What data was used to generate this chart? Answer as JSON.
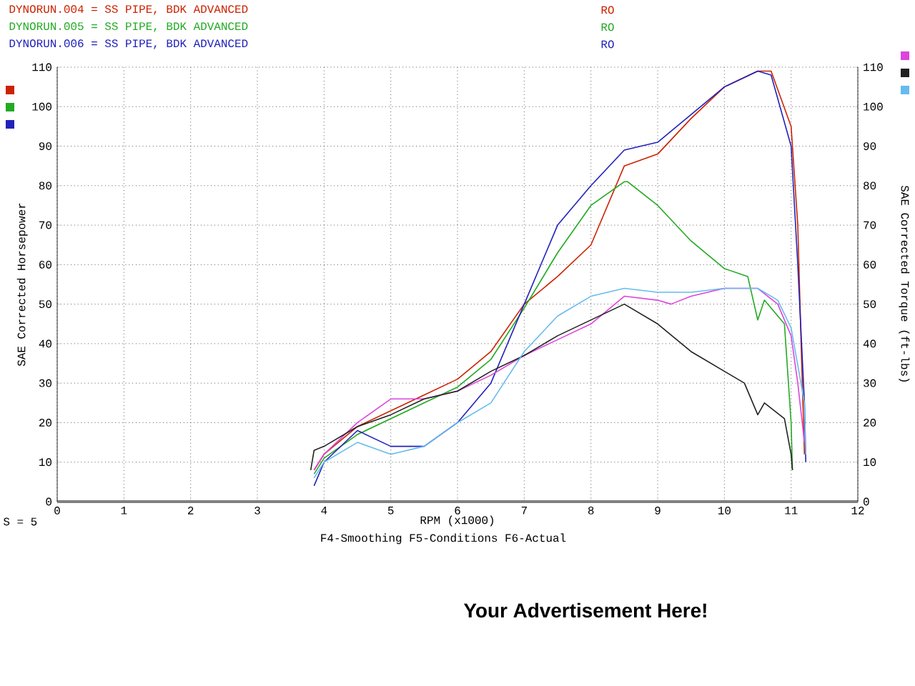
{
  "chart_data": {
    "type": "line",
    "xlabel": "RPM (x1000)",
    "ylabel": "SAE Corrected Horsepower",
    "y2label": "SAE Corrected Torque (ft-lbs)",
    "xlim": [
      0,
      12
    ],
    "xticks": [
      0,
      1,
      2,
      3,
      4,
      5,
      6,
      7,
      8,
      9,
      10,
      11,
      12
    ],
    "ylim": [
      0,
      110
    ],
    "yticks": [
      0,
      10,
      20,
      30,
      40,
      50,
      60,
      70,
      80,
      90,
      100,
      110
    ],
    "y2lim": [
      0,
      110
    ],
    "y2ticks": [
      0,
      10,
      20,
      30,
      40,
      50,
      60,
      70,
      80,
      90,
      100,
      110
    ],
    "grid": true,
    "legend": "top",
    "line_style": "solid",
    "marker": "none",
    "annotations": [
      "RO",
      "RO",
      "RO",
      "S = 5",
      "F4-Smoothing  F5-Conditions  F6-Actual",
      "Your Advertisement Here!"
    ],
    "series": [
      {
        "name": "DYNORUN.004 = SS PIPE, BDK ADVANCED",
        "color": "#cc2200",
        "x": [
          3.85,
          4,
          4.5,
          5,
          5.5,
          6,
          6.5,
          7,
          7.5,
          8,
          8.5,
          9,
          9.5,
          10,
          10.5,
          10.7,
          11,
          11.1,
          11.15,
          11.2
        ],
        "values": [
          8,
          12,
          19,
          23,
          27,
          31,
          38,
          50,
          57,
          65,
          85,
          88,
          97,
          105,
          109,
          109,
          95,
          70,
          40,
          12
        ]
      },
      {
        "name": "DYNORUN.005 = SS PIPE, BDK ADVANCED",
        "color": "#22aa22",
        "x": [
          3.85,
          4,
          4.5,
          5,
          5.5,
          6,
          6.5,
          7,
          7.5,
          8,
          8.5,
          8.55,
          9,
          9.5,
          10,
          10.35,
          10.5,
          10.6,
          10.9,
          11,
          11.02
        ],
        "values": [
          7,
          11,
          17,
          21,
          25,
          29,
          36,
          49,
          63,
          75,
          81,
          81,
          75,
          66,
          59,
          57,
          46,
          51,
          45,
          20,
          8
        ]
      },
      {
        "name": "DYNORUN.006 = SS PIPE, BDK ADVANCED",
        "color": "#2222bb",
        "x": [
          3.85,
          4,
          4.5,
          5,
          5.5,
          6,
          6.5,
          7,
          7.5,
          8,
          8.5,
          9,
          9.5,
          10,
          10.5,
          10.7,
          11,
          11.1,
          11.2,
          11.22
        ],
        "values": [
          4,
          10,
          18,
          14,
          14,
          20,
          30,
          50,
          70,
          80,
          89,
          91,
          98,
          105,
          109,
          108,
          90,
          60,
          25,
          10
        ]
      },
      {
        "color": "#dd44dd",
        "axis": "y2",
        "x": [
          3.85,
          4,
          4.5,
          5,
          5.5,
          6,
          6.5,
          7,
          7.5,
          8,
          8.5,
          9,
          9.2,
          9.5,
          10,
          10.5,
          10.8,
          11,
          11.1,
          11.2
        ],
        "values": [
          8,
          12,
          20,
          26,
          26,
          28,
          32,
          37,
          41,
          45,
          52,
          51,
          50,
          52,
          54,
          54,
          50,
          42,
          30,
          15
        ]
      },
      {
        "color": "#222222",
        "axis": "y2",
        "x": [
          3.8,
          3.85,
          4,
          4.5,
          5,
          5.5,
          6,
          6.5,
          7,
          7.5,
          8,
          8.5,
          9,
          9.5,
          10,
          10.3,
          10.5,
          10.6,
          10.9,
          11,
          11.02
        ],
        "values": [
          8,
          13,
          14,
          19,
          22,
          26,
          28,
          33,
          37,
          42,
          46,
          50,
          45,
          38,
          33,
          30,
          22,
          25,
          21,
          12,
          8
        ]
      },
      {
        "color": "#66bbee",
        "axis": "y2",
        "x": [
          3.85,
          4,
          4.5,
          5,
          5.5,
          6,
          6.5,
          7,
          7.5,
          8,
          8.5,
          9,
          9.5,
          10,
          10.5,
          10.8,
          11,
          11.2,
          11.22
        ],
        "values": [
          6,
          10,
          15,
          12,
          14,
          20,
          25,
          38,
          47,
          52,
          54,
          53,
          53,
          54,
          54,
          51,
          44,
          25,
          12
        ]
      }
    ]
  }
}
